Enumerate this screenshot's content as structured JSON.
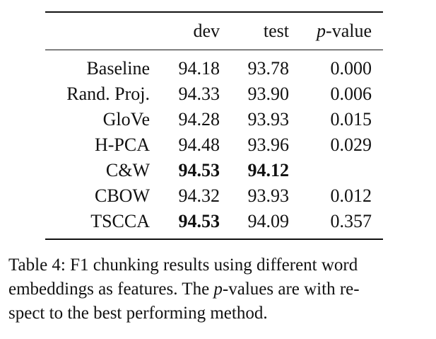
{
  "table": {
    "headers": {
      "method": "",
      "dev": "dev",
      "test": "test",
      "p_italic": "p",
      "p_suffix": "-value"
    },
    "rows": [
      {
        "method": "Baseline",
        "dev": "94.18",
        "test": "93.78",
        "p": "0.000",
        "dev_bold": false,
        "test_bold": false
      },
      {
        "method": "Rand. Proj.",
        "dev": "94.33",
        "test": "93.90",
        "p": "0.006",
        "dev_bold": false,
        "test_bold": false
      },
      {
        "method": "GloVe",
        "dev": "94.28",
        "test": "93.93",
        "p": "0.015",
        "dev_bold": false,
        "test_bold": false
      },
      {
        "method": "H-PCA",
        "dev": "94.48",
        "test": "93.96",
        "p": "0.029",
        "dev_bold": false,
        "test_bold": false
      },
      {
        "method": "C&W",
        "dev": "94.53",
        "test": "94.12",
        "p": "",
        "dev_bold": true,
        "test_bold": true
      },
      {
        "method": "CBOW",
        "dev": "94.32",
        "test": "93.93",
        "p": "0.012",
        "dev_bold": false,
        "test_bold": false
      },
      {
        "method": "TSCCA",
        "dev": "94.53",
        "test": "94.09",
        "p": "0.357",
        "dev_bold": true,
        "test_bold": false
      }
    ]
  },
  "caption": {
    "line1": "Table 4: F1 chunking results using different word",
    "line2_a": "embeddings as features. The ",
    "line2_p": "p",
    "line2_b": "-values are with re-",
    "line3": "spect to the best performing method."
  }
}
